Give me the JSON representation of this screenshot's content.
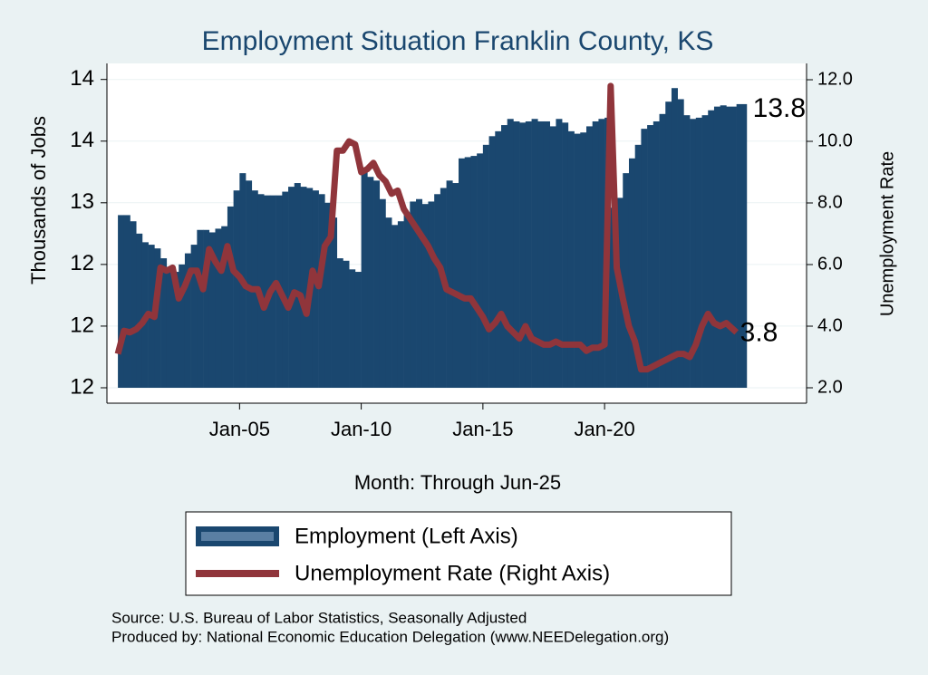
{
  "chart_data": {
    "type": "bar-line",
    "title": "Employment Situation Franklin  County, KS",
    "xlabel": "Month: Through Jun-25",
    "ylabel": "Thousands of Jobs",
    "y2label": "Unemployment Rate",
    "notes": [
      "Source: U.S. Bureau of Labor Statistics, Seasonally Adjusted",
      "Produced by: National Economic Education Delegation (www.NEEDelegation.org)"
    ],
    "x": [
      2000,
      2000.25,
      2000.5,
      2000.75,
      2001,
      2001.25,
      2001.5,
      2001.75,
      2002,
      2002.25,
      2002.5,
      2002.75,
      2003,
      2003.25,
      2003.5,
      2003.75,
      2004,
      2004.25,
      2004.5,
      2004.75,
      2005,
      2005.25,
      2005.5,
      2005.75,
      2006,
      2006.25,
      2006.5,
      2006.75,
      2007,
      2007.25,
      2007.5,
      2007.75,
      2008,
      2008.25,
      2008.5,
      2008.75,
      2009,
      2009.25,
      2009.5,
      2009.75,
      2010,
      2010.25,
      2010.5,
      2010.75,
      2011,
      2011.25,
      2011.5,
      2011.75,
      2012,
      2012.25,
      2012.5,
      2012.75,
      2013,
      2013.25,
      2013.5,
      2013.75,
      2014,
      2014.25,
      2014.5,
      2014.75,
      2015,
      2015.25,
      2015.5,
      2015.75,
      2016,
      2016.25,
      2016.5,
      2016.75,
      2017,
      2017.25,
      2017.5,
      2017.75,
      2018,
      2018.25,
      2018.5,
      2018.75,
      2019,
      2019.25,
      2019.5,
      2019.75,
      2020,
      2020.25,
      2020.5,
      2020.75,
      2021,
      2021.25,
      2021.5,
      2021.75,
      2022,
      2022.25,
      2022.5,
      2022.75,
      2023,
      2023.25,
      2023.5,
      2023.75,
      2024,
      2024.25,
      2024.5,
      2024.75,
      2025,
      2025.42
    ],
    "series": [
      {
        "name": "Employment (Left Axis)",
        "type": "bar",
        "color": "#1a476f",
        "values": [
          12.9,
          12.9,
          12.85,
          12.75,
          12.68,
          12.66,
          12.63,
          12.55,
          12.48,
          12.44,
          12.5,
          12.59,
          12.66,
          12.78,
          12.78,
          12.76,
          12.79,
          12.81,
          12.97,
          13.1,
          13.24,
          13.18,
          13.1,
          13.07,
          13.06,
          13.06,
          13.06,
          13.09,
          13.13,
          13.16,
          13.13,
          13.12,
          13.1,
          13.07,
          13.0,
          12.88,
          12.55,
          12.53,
          12.46,
          12.44,
          13.25,
          13.21,
          13.18,
          13.03,
          12.88,
          12.82,
          12.85,
          12.91,
          13.01,
          13.03,
          12.99,
          13.01,
          13.07,
          13.12,
          13.18,
          13.16,
          13.36,
          13.37,
          13.38,
          13.4,
          13.47,
          13.54,
          13.58,
          13.63,
          13.68,
          13.66,
          13.65,
          13.66,
          13.68,
          13.66,
          13.66,
          13.62,
          13.68,
          13.65,
          13.58,
          13.56,
          13.57,
          13.62,
          13.66,
          13.68,
          13.69,
          12.96,
          13.04,
          13.24,
          13.36,
          13.47,
          13.6,
          13.63,
          13.66,
          13.72,
          13.82,
          13.93,
          13.84,
          13.71,
          13.68,
          13.69,
          13.71,
          13.75,
          13.78,
          13.79,
          13.78,
          13.8
        ]
      },
      {
        "name": "Unemployment Rate (Right Axis)",
        "type": "line",
        "axis": "y2",
        "color": "#90353b",
        "values": [
          3.1,
          3.85,
          3.8,
          3.9,
          4.1,
          4.4,
          4.3,
          5.9,
          5.8,
          5.9,
          4.9,
          5.3,
          5.8,
          5.8,
          5.2,
          6.5,
          6.1,
          5.8,
          6.6,
          5.8,
          5.6,
          5.3,
          5.2,
          5.2,
          4.6,
          5.1,
          5.4,
          5.0,
          4.6,
          5.1,
          5.0,
          4.4,
          5.8,
          5.3,
          6.6,
          6.9,
          9.7,
          9.7,
          10.0,
          9.9,
          9.0,
          9.1,
          9.3,
          8.9,
          8.7,
          8.3,
          8.4,
          7.8,
          7.5,
          7.2,
          6.9,
          6.6,
          6.2,
          5.9,
          5.2,
          5.1,
          5.0,
          4.9,
          4.9,
          4.6,
          4.3,
          3.9,
          4.1,
          4.4,
          4.0,
          3.8,
          3.6,
          4.0,
          3.6,
          3.5,
          3.4,
          3.4,
          3.5,
          3.4,
          3.4,
          3.4,
          3.4,
          3.2,
          3.3,
          3.3,
          3.4,
          11.8,
          5.9,
          4.9,
          4.0,
          3.5,
          2.6,
          2.6,
          2.7,
          2.8,
          2.9,
          3.0,
          3.1,
          3.1,
          3.0,
          3.4,
          4.0,
          4.4,
          4.1,
          4.0,
          4.1,
          3.8
        ]
      }
    ],
    "xlim": [
      1999.55,
      2028.3
    ],
    "xticks": [
      {
        "value": 2005,
        "label": "Jan-05"
      },
      {
        "value": 2010,
        "label": "Jan-10"
      },
      {
        "value": 2015,
        "label": "Jan-15"
      },
      {
        "value": 2020,
        "label": "Jan-20"
      }
    ],
    "ylim": [
      11.375,
      14.13
    ],
    "yticks": [
      {
        "value": 11.5,
        "label": "12"
      },
      12,
      {
        "value": 12.5,
        "label": "12"
      },
      13,
      {
        "value": 13.5,
        "label": "14"
      },
      14
    ],
    "y2lim": [
      1.5,
      12.53
    ],
    "y2ticks": [
      {
        "value": 2,
        "label": "2.0"
      },
      {
        "value": 4,
        "label": "4.0"
      },
      {
        "value": 6,
        "label": "6.0"
      },
      {
        "value": 8,
        "label": "8.0"
      },
      {
        "value": 10,
        "label": "10.0"
      },
      {
        "value": 12,
        "label": "12.0"
      }
    ],
    "grid": true
  }
}
